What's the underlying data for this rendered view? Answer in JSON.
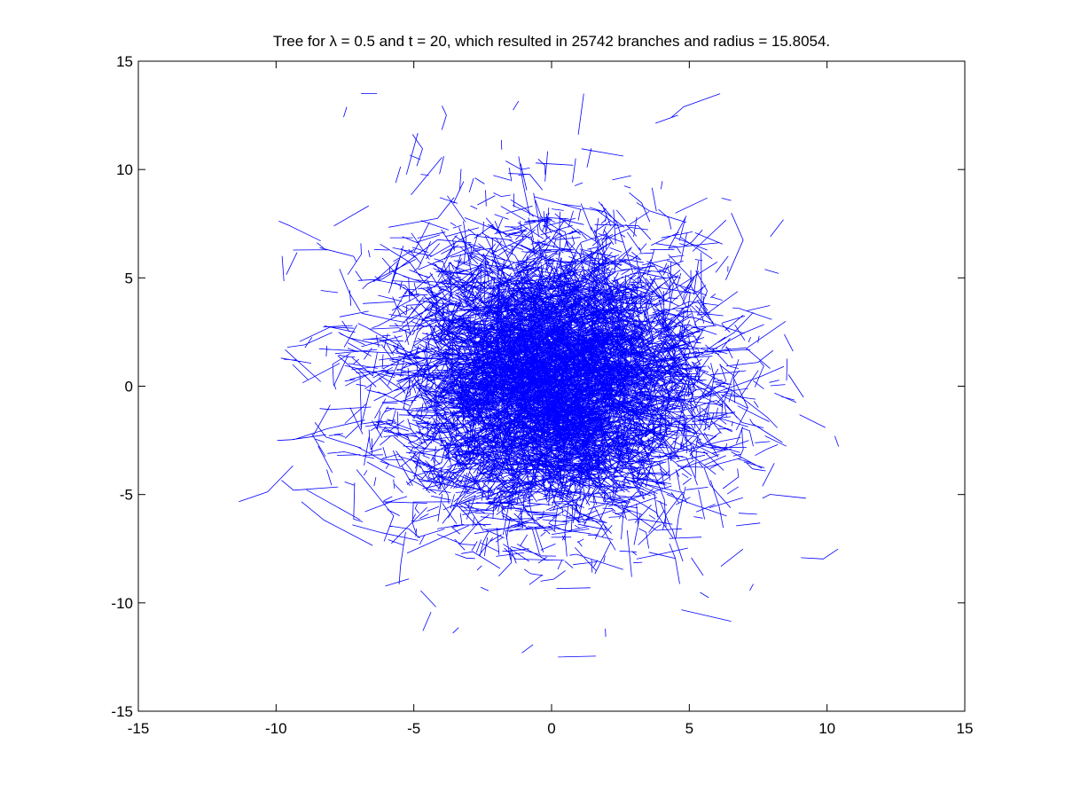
{
  "chart_data": {
    "type": "line",
    "title": "Tree for λ = 0.5 and t = 20, which resulted in 25742 branches and radius = 15.8054.",
    "xlabel": "",
    "ylabel": "",
    "xlim": [
      -15,
      15
    ],
    "ylim": [
      -15,
      15
    ],
    "x_ticks": [
      -15,
      -10,
      -5,
      0,
      5,
      10,
      15
    ],
    "y_ticks": [
      -15,
      -10,
      -5,
      0,
      5,
      10,
      15
    ],
    "x_tick_labels": [
      "-15",
      "-10",
      "-5",
      "0",
      "5",
      "10",
      "15"
    ],
    "y_tick_labels": [
      "-15",
      "-10",
      "-5",
      "0",
      "5",
      "10",
      "15"
    ],
    "grid": false,
    "legend": "none",
    "series": [
      {
        "color": "#0000ff",
        "lambda": 0.5,
        "t": 20,
        "branches": 25742,
        "radius": 15.8054,
        "extent_x": [
          -13.1,
          13.3
        ],
        "extent_y": [
          -12.5,
          13.5
        ],
        "core_center": [
          0.0,
          0.3
        ],
        "core_spread": [
          3.2,
          3.8
        ]
      }
    ]
  }
}
